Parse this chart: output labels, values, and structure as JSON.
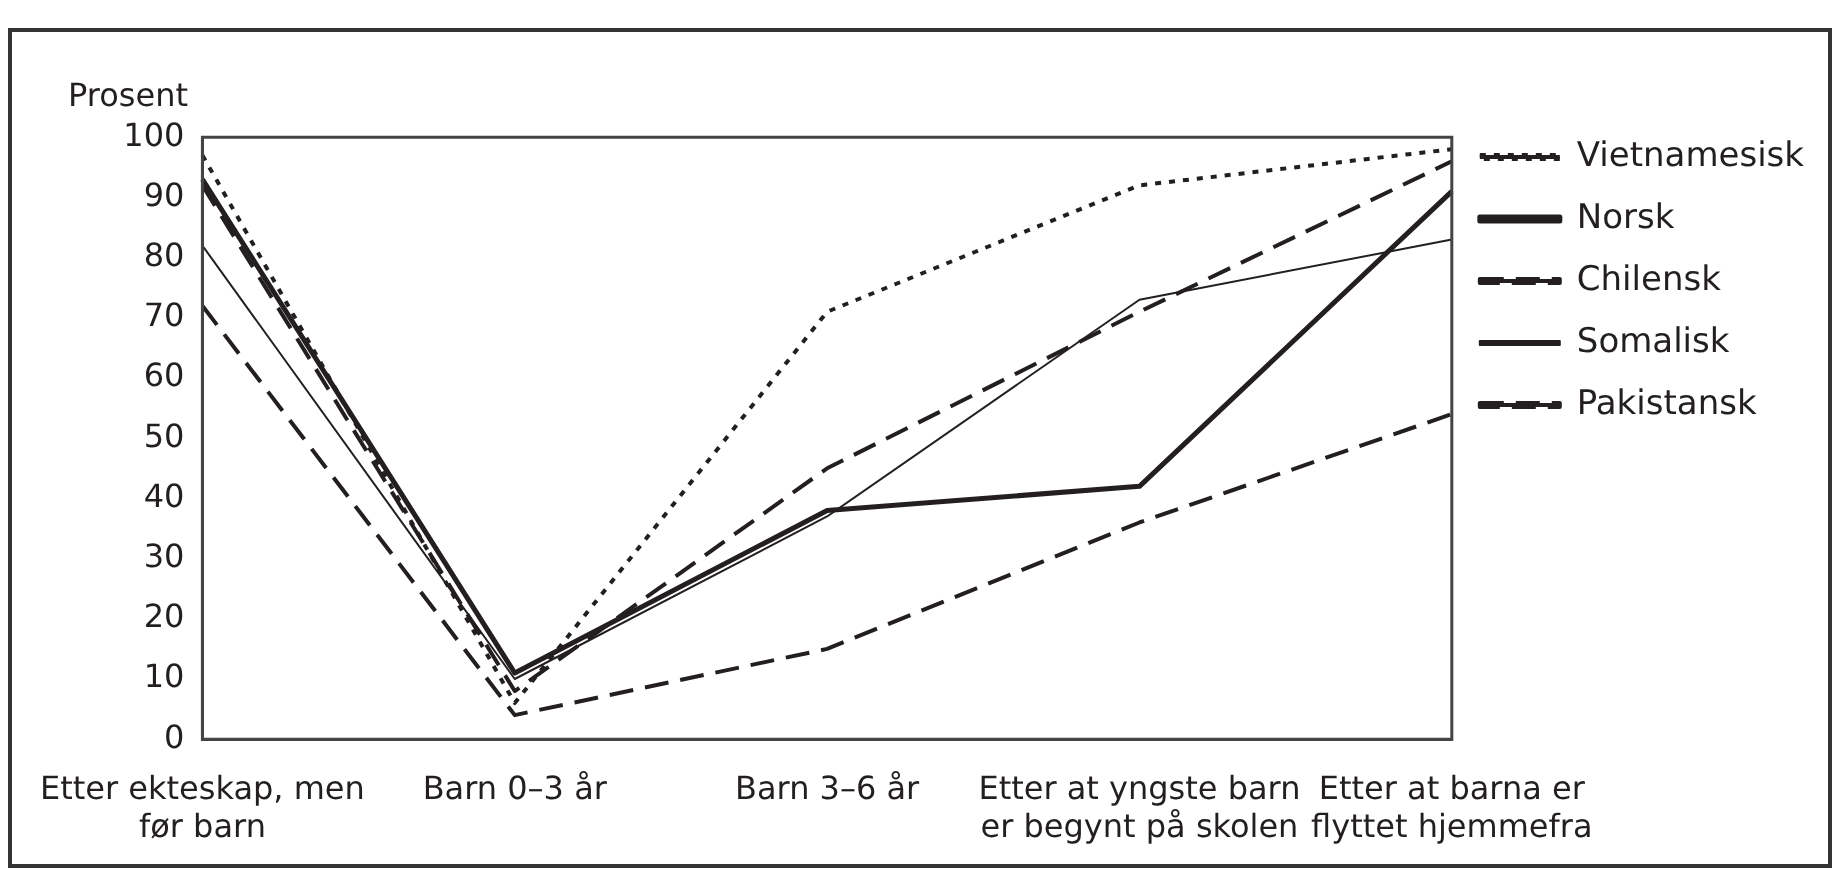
{
  "chart_data": {
    "type": "line",
    "ylabel": "Prosent",
    "categories": [
      "Etter ekteskap, men før barn",
      "Barn 0–3 år",
      "Barn 3–6 år",
      "Etter at yngste barn er begynt på skolen",
      "Etter at barna er flyttet hjemmefra"
    ],
    "series": [
      {
        "name": "Vietnamesisk",
        "color": "#231f20",
        "line_style": "dotted",
        "values": [
          97,
          6,
          71,
          92,
          98
        ]
      },
      {
        "name": "Norsk",
        "color": "#231f20",
        "line_style": "solid",
        "values": [
          93,
          11,
          38,
          42,
          91
        ]
      },
      {
        "name": "Chilensk",
        "color": "#231f20",
        "line_style": "dashed",
        "values": [
          92,
          8,
          45,
          71,
          96
        ]
      },
      {
        "name": "Somalisk",
        "color": "#231f20",
        "line_style": "solid",
        "values": [
          82,
          10,
          37,
          73,
          83
        ]
      },
      {
        "name": "Pakistansk",
        "color": "#231f20",
        "line_style": "dashed",
        "values": [
          72,
          4,
          15,
          36,
          54
        ]
      }
    ],
    "ylim": [
      0,
      100
    ],
    "yticks": [
      0,
      10,
      20,
      30,
      40,
      50,
      60,
      70,
      80,
      90,
      100
    ],
    "grid": false,
    "legend": "right",
    "marker": "none"
  }
}
